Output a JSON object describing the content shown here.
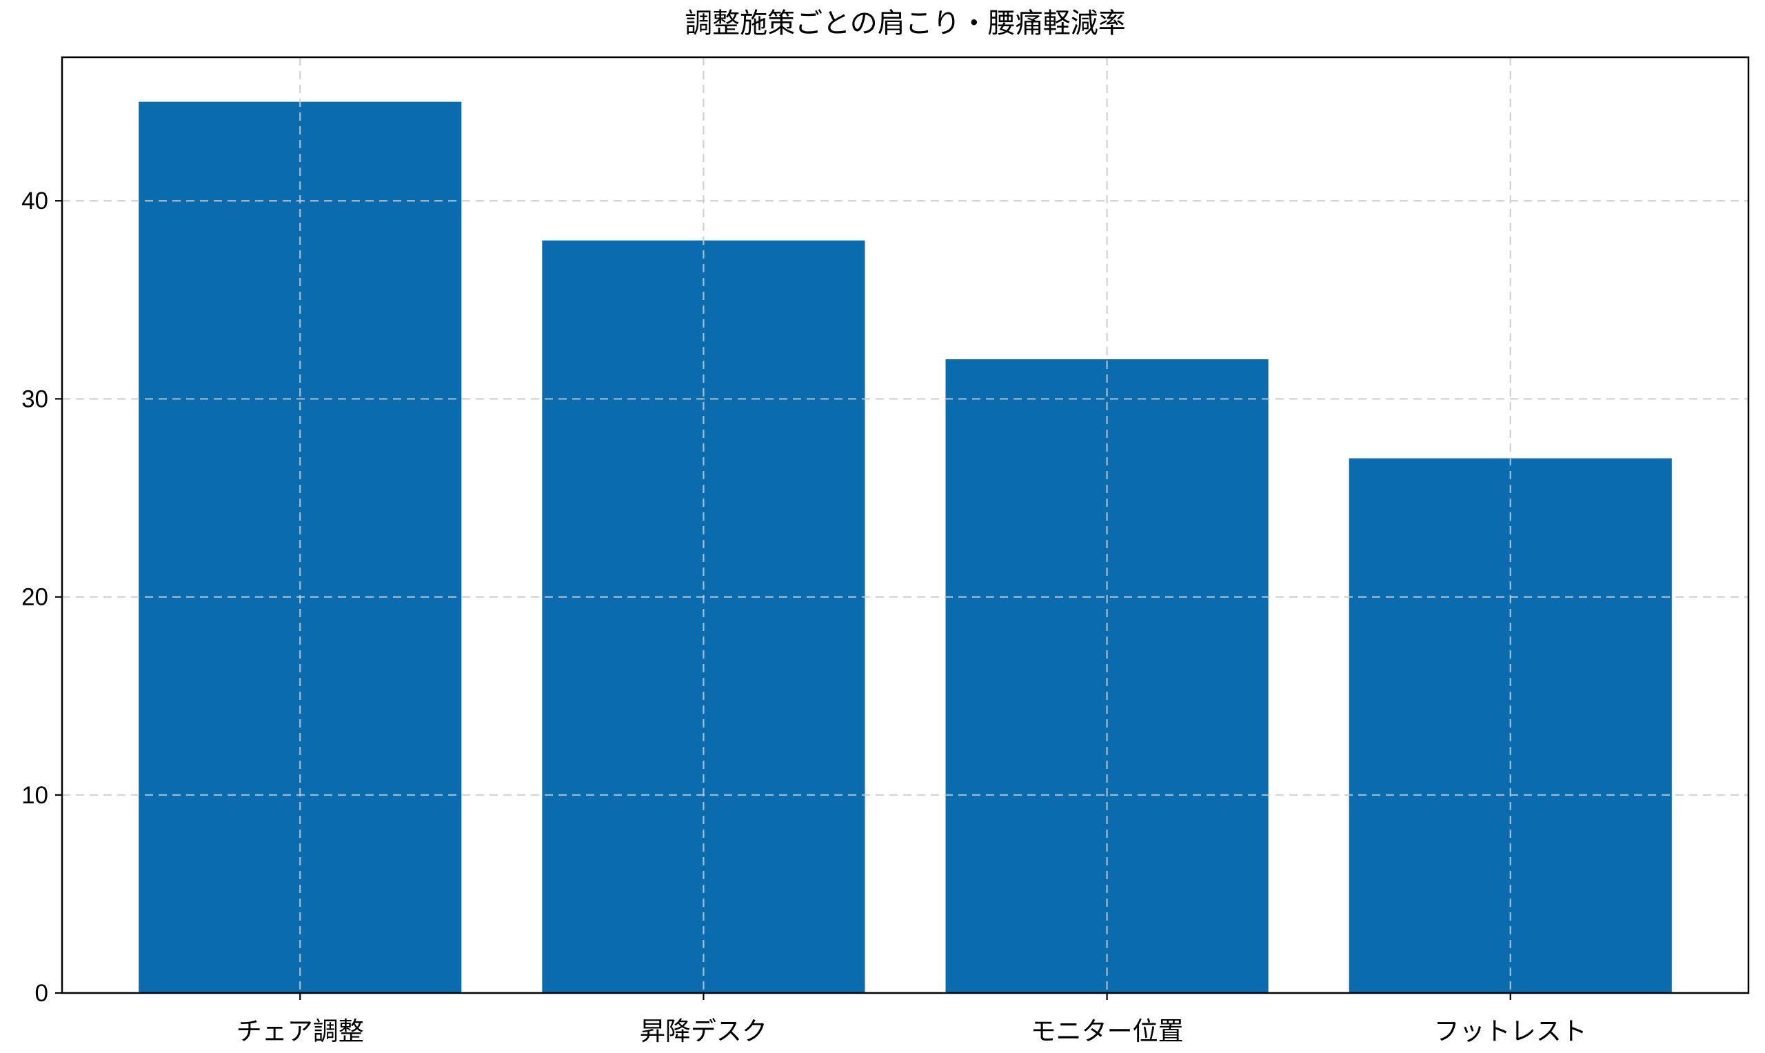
{
  "chart_data": {
    "type": "bar",
    "title": "調整施策ごとの肩こり・腰痛軽減率",
    "categories": [
      "チェア調整",
      "昇降デスク",
      "モニター位置",
      "フットレスト"
    ],
    "values": [
      45,
      38,
      32,
      27
    ],
    "xlabel": "",
    "ylabel": "",
    "yticks": [
      0,
      10,
      20,
      30,
      40
    ],
    "ylim": [
      0,
      47.25
    ],
    "bar_color": "#0a6cae",
    "spine_color": "#000000",
    "grid_color": "#c9c9c9",
    "grid_style": "dashed",
    "grid_axes": "both",
    "grid_above_bars": true,
    "legend": "none",
    "background": "#ffffff"
  }
}
